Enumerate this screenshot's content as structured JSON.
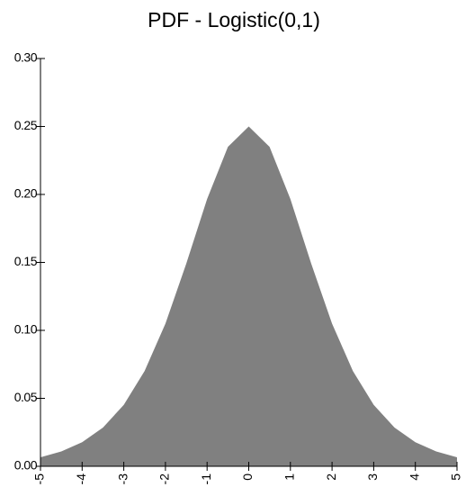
{
  "chart_data": {
    "type": "area",
    "title": "PDF - Logistic(0,1)",
    "x": [
      -5,
      -4.5,
      -4,
      -3.5,
      -3,
      -2.5,
      -2,
      -1.5,
      -1,
      -0.5,
      0,
      0.5,
      1,
      1.5,
      2,
      2.5,
      3,
      3.5,
      4,
      4.5,
      5
    ],
    "values": [
      0.0066,
      0.0109,
      0.0177,
      0.0285,
      0.0452,
      0.0701,
      0.105,
      0.1491,
      0.1966,
      0.235,
      0.25,
      0.235,
      0.1966,
      0.1491,
      0.105,
      0.0701,
      0.0452,
      0.0285,
      0.0177,
      0.0109,
      0.0066
    ],
    "color": "#808080",
    "xlim": [
      -5,
      5
    ],
    "xticks": [
      -5,
      -4,
      -3,
      -2,
      -1,
      0,
      1,
      2,
      3,
      4,
      5
    ],
    "ylim": [
      0,
      0.3
    ],
    "yticks": [
      {
        "value": 0,
        "label": "0.00"
      },
      {
        "value": 0.05,
        "label": "0.05"
      },
      {
        "value": 0.1,
        "label": "0.10"
      },
      {
        "value": 0.15,
        "label": "0.15"
      },
      {
        "value": 0.2,
        "label": "0.20"
      },
      {
        "value": 0.25,
        "label": "0.25"
      },
      {
        "value": 0.3,
        "label": "0.30"
      }
    ]
  }
}
